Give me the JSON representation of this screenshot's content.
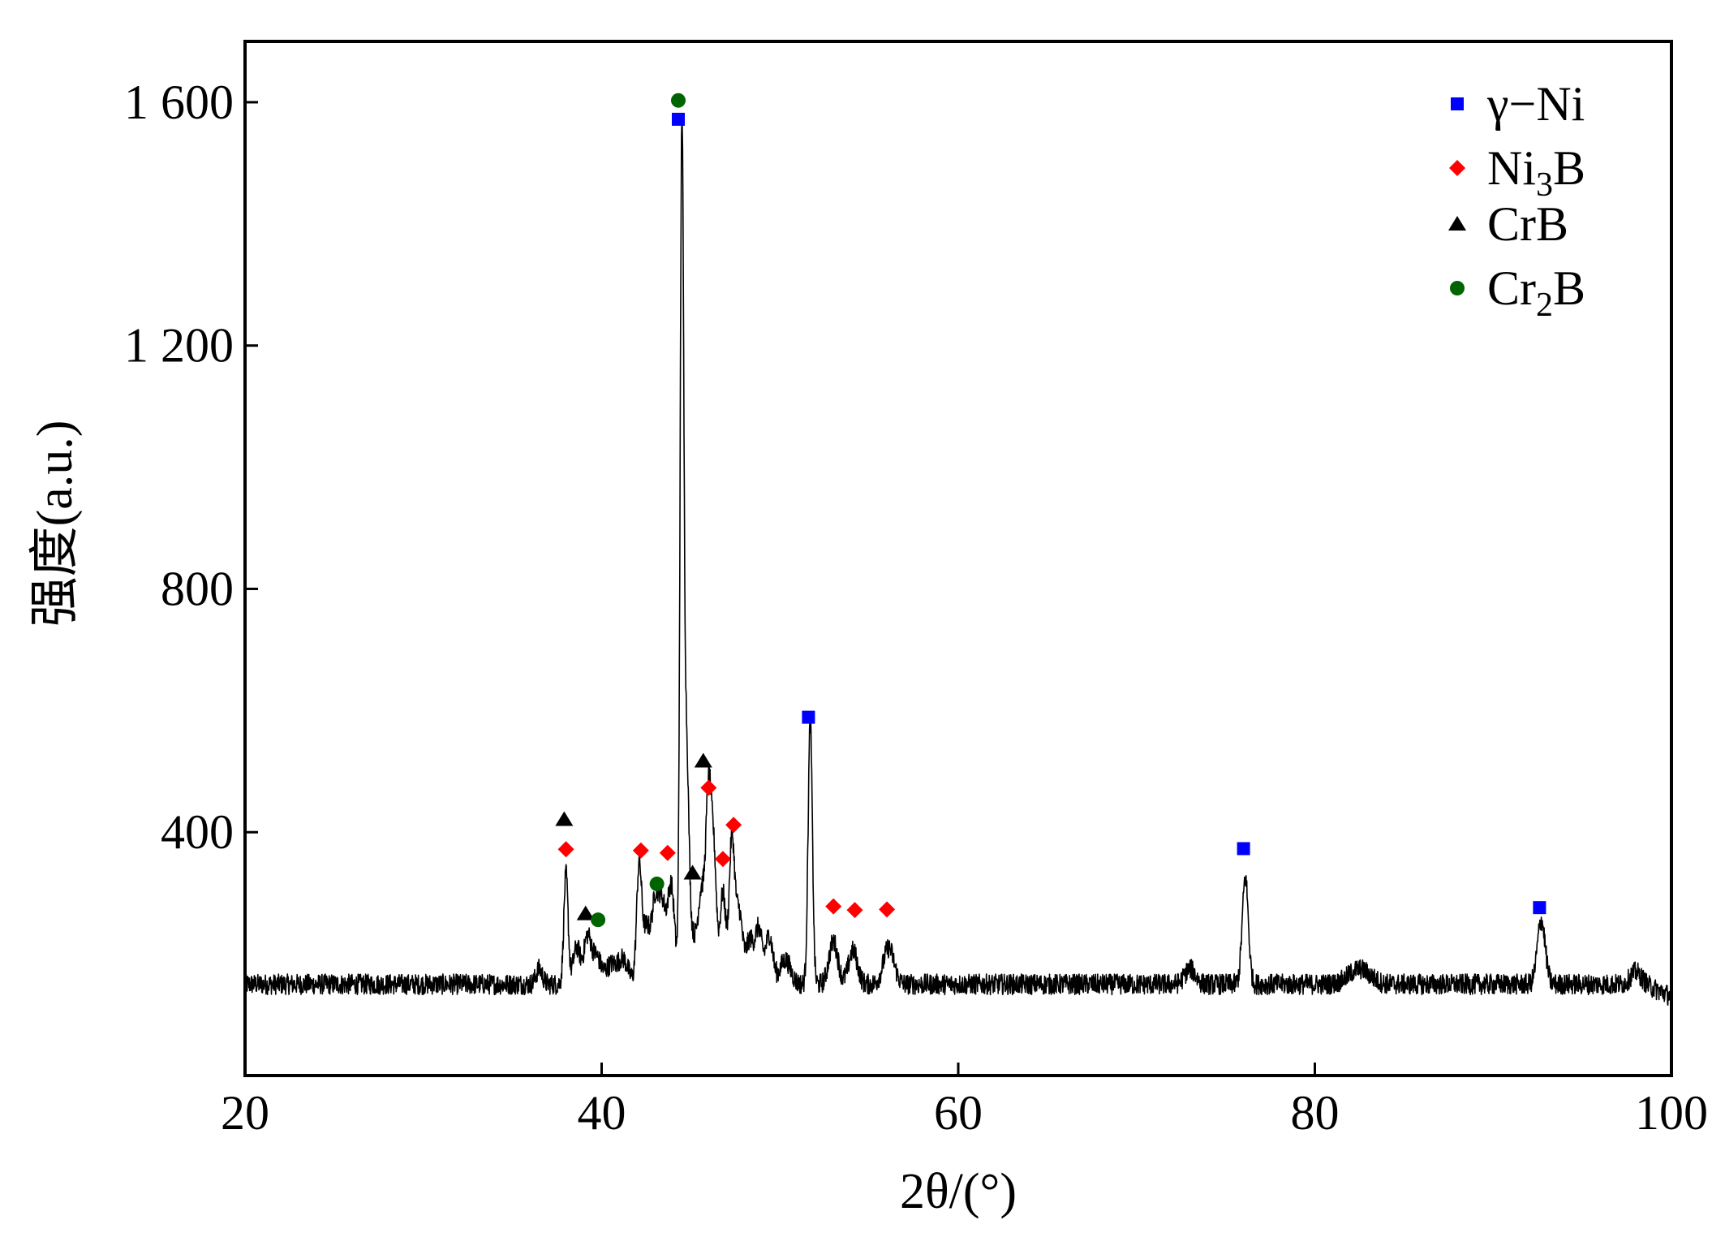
{
  "chart_data": {
    "type": "line",
    "xlabel": "2θ/(°)",
    "ylabel": "强度(a.u.)",
    "xlim": [
      20,
      100
    ],
    "ylim": [
      0,
      1700
    ],
    "x_ticks": [
      20,
      40,
      60,
      80,
      100
    ],
    "x_tick_labels": [
      "20",
      "40",
      "60",
      "80",
      "100"
    ],
    "y_ticks": [
      400,
      800,
      1200,
      1600
    ],
    "y_tick_labels": [
      "400",
      "800",
      "1 200",
      "1 600"
    ],
    "grid": false,
    "legend_position": "top-right",
    "colors": {
      "curve": "#000000",
      "gamma_ni": "#0000ff",
      "ni3b": "#ff0000",
      "crb": "#000000",
      "cr2b": "#006400"
    },
    "legend": [
      {
        "key": "gamma_ni",
        "marker": "square",
        "label": "γ−Ni"
      },
      {
        "key": "ni3b",
        "marker": "diamond",
        "label": "Ni",
        "sub": "3",
        "suffix": "B"
      },
      {
        "key": "crb",
        "marker": "triangle",
        "label": "CrB"
      },
      {
        "key": "cr2b",
        "marker": "circle",
        "label": "Cr",
        "sub": "2",
        "suffix": "B"
      }
    ],
    "baseline_intensity": 150,
    "peaks": [
      {
        "x": 36.5,
        "height": 25,
        "width": 0.18
      },
      {
        "x": 38.0,
        "height": 180,
        "width": 0.12
      },
      {
        "x": 38.6,
        "height": 60,
        "width": 0.2
      },
      {
        "x": 39.2,
        "height": 75,
        "width": 0.2
      },
      {
        "x": 39.7,
        "height": 45,
        "width": 0.25
      },
      {
        "x": 40.5,
        "height": 30,
        "width": 0.3
      },
      {
        "x": 41.2,
        "height": 40,
        "width": 0.3
      },
      {
        "x": 42.1,
        "height": 190,
        "width": 0.14
      },
      {
        "x": 42.5,
        "height": 90,
        "width": 0.2
      },
      {
        "x": 43.0,
        "height": 130,
        "width": 0.2
      },
      {
        "x": 43.4,
        "height": 120,
        "width": 0.2
      },
      {
        "x": 43.9,
        "height": 160,
        "width": 0.2
      },
      {
        "x": 44.5,
        "height": 1350,
        "width": 0.1
      },
      {
        "x": 44.75,
        "height": 380,
        "width": 0.14
      },
      {
        "x": 45.1,
        "height": 70,
        "width": 0.2
      },
      {
        "x": 45.6,
        "height": 150,
        "width": 0.2
      },
      {
        "x": 46.0,
        "height": 300,
        "width": 0.15
      },
      {
        "x": 46.3,
        "height": 200,
        "width": 0.15
      },
      {
        "x": 46.8,
        "height": 150,
        "width": 0.16
      },
      {
        "x": 47.3,
        "height": 230,
        "width": 0.15
      },
      {
        "x": 47.7,
        "height": 120,
        "width": 0.2
      },
      {
        "x": 48.3,
        "height": 70,
        "width": 0.2
      },
      {
        "x": 48.8,
        "height": 90,
        "width": 0.2
      },
      {
        "x": 49.4,
        "height": 80,
        "width": 0.2
      },
      {
        "x": 50.3,
        "height": 40,
        "width": 0.3
      },
      {
        "x": 51.7,
        "height": 430,
        "width": 0.12
      },
      {
        "x": 53.0,
        "height": 70,
        "width": 0.25
      },
      {
        "x": 54.1,
        "height": 55,
        "width": 0.25
      },
      {
        "x": 56.1,
        "height": 60,
        "width": 0.3
      },
      {
        "x": 73.0,
        "height": 25,
        "width": 0.3
      },
      {
        "x": 76.1,
        "height": 175,
        "width": 0.17
      },
      {
        "x": 82.5,
        "height": 25,
        "width": 0.6
      },
      {
        "x": 92.7,
        "height": 105,
        "width": 0.22
      },
      {
        "x": 98.0,
        "height": 20,
        "width": 0.3
      }
    ],
    "tail_drop": {
      "from_x": 98.5,
      "to_x": 100,
      "drop": 20
    },
    "markers": [
      {
        "phase": "gamma_ni",
        "x": 44.3,
        "y": 1572
      },
      {
        "phase": "gamma_ni",
        "x": 51.6,
        "y": 589
      },
      {
        "phase": "gamma_ni",
        "x": 76.0,
        "y": 373
      },
      {
        "phase": "gamma_ni",
        "x": 92.6,
        "y": 276
      },
      {
        "phase": "ni3b",
        "x": 38.0,
        "y": 372
      },
      {
        "phase": "ni3b",
        "x": 42.2,
        "y": 370
      },
      {
        "phase": "ni3b",
        "x": 43.7,
        "y": 366
      },
      {
        "phase": "ni3b",
        "x": 46.0,
        "y": 473
      },
      {
        "phase": "ni3b",
        "x": 46.8,
        "y": 356
      },
      {
        "phase": "ni3b",
        "x": 47.4,
        "y": 412
      },
      {
        "phase": "ni3b",
        "x": 53.0,
        "y": 278
      },
      {
        "phase": "ni3b",
        "x": 54.2,
        "y": 272
      },
      {
        "phase": "ni3b",
        "x": 56.0,
        "y": 273
      },
      {
        "phase": "crb",
        "x": 37.9,
        "y": 421
      },
      {
        "phase": "crb",
        "x": 39.1,
        "y": 266
      },
      {
        "phase": "crb",
        "x": 45.1,
        "y": 333
      },
      {
        "phase": "crb",
        "x": 45.7,
        "y": 517
      },
      {
        "phase": "cr2b",
        "x": 39.8,
        "y": 256
      },
      {
        "phase": "cr2b",
        "x": 43.1,
        "y": 315
      },
      {
        "phase": "cr2b",
        "x": 44.3,
        "y": 1603
      }
    ]
  }
}
